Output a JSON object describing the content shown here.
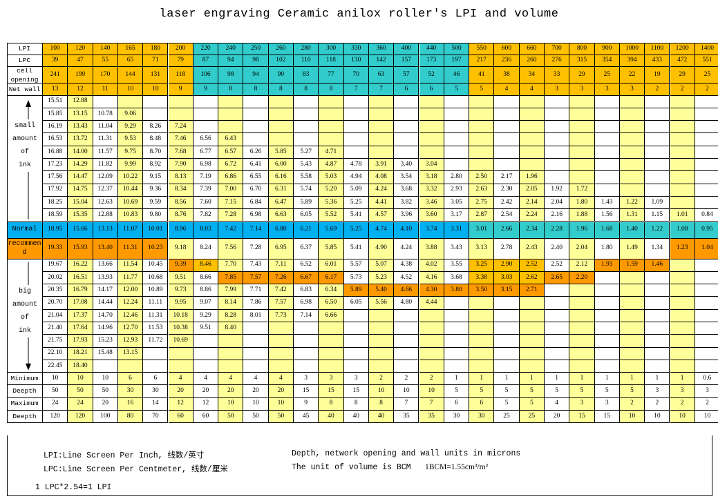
{
  "title": "laser engraving Ceramic anilox roller's LPI and volume",
  "colors": {
    "yellow": "#ffff99",
    "gold": "#ffc000",
    "cyan": "#33cccc",
    "blue": "#00b0f0",
    "orange": "#ff9900",
    "light_orange": "#ffd966",
    "white": "#ffffff"
  },
  "header_rows": [
    {
      "label": "LPI",
      "values": [
        "100",
        "120",
        "140",
        "165",
        "180",
        "200",
        "220",
        "240",
        "250",
        "260",
        "280",
        "300",
        "330",
        "360",
        "400",
        "440",
        "500",
        "550",
        "600",
        "660",
        "700",
        "800",
        "900",
        "1000",
        "1100",
        "1200",
        "1400"
      ]
    },
    {
      "label": "LPC",
      "values": [
        "39",
        "47",
        "55",
        "65",
        "71",
        "79",
        "87",
        "94",
        "98",
        "102",
        "110",
        "118",
        "130",
        "142",
        "157",
        "173",
        "197",
        "217",
        "236",
        "260",
        "276",
        "315",
        "354",
        "394",
        "433",
        "472",
        "551"
      ]
    },
    {
      "label": "cell opening",
      "values": [
        "241",
        "199",
        "170",
        "144",
        "131",
        "118",
        "106",
        "98",
        "94",
        "90",
        "83",
        "77",
        "70",
        "63",
        "57",
        "52",
        "46",
        "41",
        "38",
        "34",
        "33",
        "29",
        "25",
        "22",
        "19",
        "29",
        "25"
      ]
    },
    {
      "label": "Net wall",
      "values": [
        "13",
        "12",
        "11",
        "10",
        "10",
        "9",
        "9",
        "8",
        "8",
        "8",
        "8",
        "8",
        "7",
        "7",
        "6",
        "6",
        "5",
        "5",
        "4",
        "4",
        "3",
        "3",
        "3",
        "3",
        "2",
        "2",
        "2"
      ]
    }
  ],
  "side_labels": {
    "small": [
      "small",
      "amount",
      "of",
      "ink"
    ],
    "normal": "Normal",
    "recommend": "recommend",
    "big": [
      "big",
      "amount",
      "of",
      "ink"
    ]
  },
  "volume_rows": [
    [
      "15.51",
      "12.88",
      "",
      "",
      "",
      "",
      "",
      "",
      "",
      "",
      "",
      "",
      "",
      "",
      "",
      "",
      "",
      "",
      "",
      "",
      "",
      "",
      "",
      "",
      "",
      "",
      ""
    ],
    [
      "15.85",
      "13.15",
      "10.78",
      "9.06",
      "",
      "",
      "",
      "",
      "",
      "",
      "",
      "",
      "",
      "",
      "",
      "",
      "",
      "",
      "",
      "",
      "",
      "",
      "",
      "",
      "",
      "",
      ""
    ],
    [
      "16.19",
      "13.43",
      "11.04",
      "9.29",
      "8.26",
      "7.24",
      "",
      "",
      "",
      "",
      "",
      "",
      "",
      "",
      "",
      "",
      "",
      "",
      "",
      "",
      "",
      "",
      "",
      "",
      "",
      "",
      ""
    ],
    [
      "16.53",
      "13.72",
      "11.31",
      "9.53",
      "8.48",
      "7.46",
      "6.56",
      "6.43",
      "",
      "",
      "",
      "",
      "",
      "",
      "",
      "",
      "",
      "",
      "",
      "",
      "",
      "",
      "",
      "",
      "",
      "",
      ""
    ],
    [
      "16.88",
      "14.00",
      "11.57",
      "9.75",
      "8.70",
      "7.68",
      "6.77",
      "6.57",
      "6.26",
      "5.85",
      "5.27",
      "4.71",
      "",
      "",
      "",
      "",
      "",
      "",
      "",
      "",
      "",
      "",
      "",
      "",
      "",
      "",
      ""
    ],
    [
      "17.23",
      "14.29",
      "11.82",
      "9.99",
      "8.92",
      "7.90",
      "6.98",
      "6.72",
      "6.41",
      "6.00",
      "5.43",
      "4.87",
      "4.78",
      "3.91",
      "3.40",
      "3.04",
      "",
      "",
      "",
      "",
      "",
      "",
      "",
      "",
      "",
      "",
      ""
    ],
    [
      "17.56",
      "14.47",
      "12.09",
      "10.22",
      "9.15",
      "8.13",
      "7.19",
      "6.86",
      "6.55",
      "6.16",
      "5.58",
      "5.03",
      "4.94",
      "4.08",
      "3.54",
      "3.18",
      "2.80",
      "2.50",
      "2.17",
      "1.96",
      "",
      "",
      "",
      "",
      "",
      "",
      ""
    ],
    [
      "17.92",
      "14.75",
      "12.37",
      "10.44",
      "9.36",
      "8.34",
      "7.39",
      "7.00",
      "6.70",
      "6.31",
      "5.74",
      "5.20",
      "5.09",
      "4.24",
      "3.68",
      "3.32",
      "2.93",
      "2.63",
      "2.30",
      "2.05",
      "1.92",
      "1.72",
      "",
      "",
      "",
      "",
      ""
    ],
    [
      "18.25",
      "15.04",
      "12.63",
      "10.69",
      "9.59",
      "8.56",
      "7.60",
      "7.15",
      "6.84",
      "6.47",
      "5.89",
      "5.36",
      "5.25",
      "4.41",
      "3.82",
      "3.46",
      "3.05",
      "2.75",
      "2.42",
      "2.14",
      "2.04",
      "1.80",
      "1.43",
      "1.22",
      "1.09",
      "",
      ""
    ],
    [
      "18.59",
      "15.35",
      "12.88",
      "10.83",
      "9.80",
      "8.76",
      "7.82",
      "7.28",
      "6.98",
      "6.63",
      "6.05",
      "5.52",
      "5.41",
      "4.57",
      "3.96",
      "3.60",
      "3.17",
      "2.87",
      "2.54",
      "2.24",
      "2.16",
      "1.88",
      "1.56",
      "1.31",
      "1.15",
      "1.01",
      "0.84"
    ],
    [
      "18.95",
      "15.66",
      "13.13",
      "11.07",
      "10.01",
      "8.96",
      "8.03",
      "7.42",
      "7.14",
      "6.80",
      "6.21",
      "5.69",
      "5.25",
      "4.74",
      "4.10",
      "3.74",
      "3.31",
      "3.01",
      "2.66",
      "2.34",
      "2.28",
      "1.96",
      "1.68",
      "1.40",
      "1.22",
      "1.08",
      "0.95"
    ],
    [
      "19.33",
      "15.93",
      "13.40",
      "11.31",
      "10.23",
      "9.18",
      "8.24",
      "7.56",
      "7.28",
      "6.95",
      "6.37",
      "5.85",
      "5.41",
      "4.90",
      "4.24",
      "3.88",
      "3.43",
      "3.13",
      "2.78",
      "2.43",
      "2.40",
      "2.04",
      "1.80",
      "1.49",
      "1.34",
      "1.23",
      "1.04"
    ],
    [
      "19.67",
      "16.22",
      "13.66",
      "11.54",
      "10.45",
      "9.39",
      "8.46",
      "7.70",
      "7.43",
      "7.11",
      "6.52",
      "6.01",
      "5.57",
      "5.07",
      "4.38",
      "4.02",
      "3.55",
      "3.25",
      "2.90",
      "2.52",
      "2.52",
      "2.12",
      "1.93",
      "1.59",
      "1.46",
      "",
      ""
    ],
    [
      "20.02",
      "16.51",
      "13.93",
      "11.77",
      "10.68",
      "9.51",
      "8.66",
      "7.85",
      "7.57",
      "7.26",
      "6.67",
      "6.17",
      "5.73",
      "5.23",
      "4.52",
      "4.16",
      "3.68",
      "3.38",
      "3.03",
      "2.62",
      "2.65",
      "2.20",
      "",
      "",
      "",
      "",
      ""
    ],
    [
      "20.35",
      "16.79",
      "14.17",
      "12.00",
      "10.89",
      "9.73",
      "8.86",
      "7.99",
      "7.71",
      "7.42",
      "6.83",
      "6.34",
      "5.89",
      "5.40",
      "4.66",
      "4.30",
      "3.80",
      "3.50",
      "3.15",
      "2.71",
      "",
      "",
      "",
      "",
      "",
      "",
      ""
    ],
    [
      "20.70",
      "17.08",
      "14.44",
      "12.24",
      "11.11",
      "9.95",
      "9.07",
      "8.14",
      "7.86",
      "7.57",
      "6.98",
      "6.50",
      "6.05",
      "5.56",
      "4.80",
      "4.44",
      "",
      "",
      "",
      "",
      "",
      "",
      "",
      "",
      "",
      "",
      ""
    ],
    [
      "21.04",
      "17.37",
      "14.70",
      "12.46",
      "11.31",
      "10.18",
      "9.29",
      "8.28",
      "8.01",
      "7.73",
      "7.14",
      "6.66",
      "",
      "",
      "",
      "",
      "",
      "",
      "",
      "",
      "",
      "",
      "",
      "",
      "",
      "",
      ""
    ],
    [
      "21.40",
      "17.64",
      "14.96",
      "12.70",
      "11.53",
      "10.38",
      "9.51",
      "8.40",
      "",
      "",
      "",
      "",
      "",
      "",
      "",
      "",
      "",
      "",
      "",
      "",
      "",
      "",
      "",
      "",
      "",
      "",
      ""
    ],
    [
      "21.75",
      "17.93",
      "15.23",
      "12.93",
      "11.72",
      "10.69",
      "",
      "",
      "",
      "",
      "",
      "",
      "",
      "",
      "",
      "",
      "",
      "",
      "",
      "",
      "",
      "",
      "",
      "",
      "",
      "",
      ""
    ],
    [
      "22.10",
      "18.21",
      "15.48",
      "13.15",
      "",
      "",
      "",
      "",
      "",
      "",
      "",
      "",
      "",
      "",
      "",
      "",
      "",
      "",
      "",
      "",
      "",
      "",
      "",
      "",
      "",
      "",
      ""
    ],
    [
      "22.45",
      "18.40",
      "",
      "",
      "",
      "",
      "",
      "",
      "",
      "",
      "",
      "",
      "",
      "",
      "",
      "",
      "",
      "",
      "",
      "",
      "",
      "",
      "",
      "",
      "",
      "",
      ""
    ]
  ],
  "bottom_rows": [
    {
      "label": "Minimum",
      "values": [
        "10",
        "10",
        "10",
        "6",
        "6",
        "4",
        "4",
        "4",
        "4",
        "4",
        "3",
        "3",
        "3",
        "2",
        "2",
        "2",
        "1",
        "1",
        "1",
        "1",
        "1",
        "1",
        "1",
        "1",
        "1",
        "1",
        "0.6"
      ]
    },
    {
      "label": "Deepth",
      "values": [
        "50",
        "50",
        "50",
        "30",
        "30",
        "20",
        "20",
        "20",
        "20",
        "20",
        "15",
        "15",
        "15",
        "10",
        "10",
        "10",
        "5",
        "5",
        "5",
        "5",
        "5",
        "5",
        "5",
        "5",
        "3",
        "3",
        "3"
      ]
    },
    {
      "label": "Maximum",
      "values": [
        "24",
        "24",
        "20",
        "16",
        "14",
        "12",
        "12",
        "10",
        "10",
        "10",
        "9",
        "8",
        "8",
        "8",
        "7",
        "7",
        "6",
        "6",
        "5",
        "5",
        "4",
        "3",
        "3",
        "2",
        "2",
        "2",
        "2"
      ]
    },
    {
      "label": "Deepth",
      "values": [
        "120",
        "120",
        "100",
        "80",
        "70",
        "60",
        "60",
        "50",
        "50",
        "50",
        "45",
        "40",
        "40",
        "40",
        "35",
        "35",
        "30",
        "30",
        "25",
        "25",
        "20",
        "15",
        "15",
        "10",
        "10",
        "10",
        "10"
      ]
    }
  ],
  "notes": {
    "lpi_def": "LPI:Line Screen Per Inch, 线数/英寸",
    "lpc_def": "LPC:Line Screen Per Centmeter, 线数/厘米",
    "units": "Depth, network opening  and wall units in microns",
    "volume_unit": "The unit of volume is BCM",
    "bcm_def": "1BCM=1.55cm³/m²",
    "conversion": "1 LPC*2.54=1 LPI"
  }
}
